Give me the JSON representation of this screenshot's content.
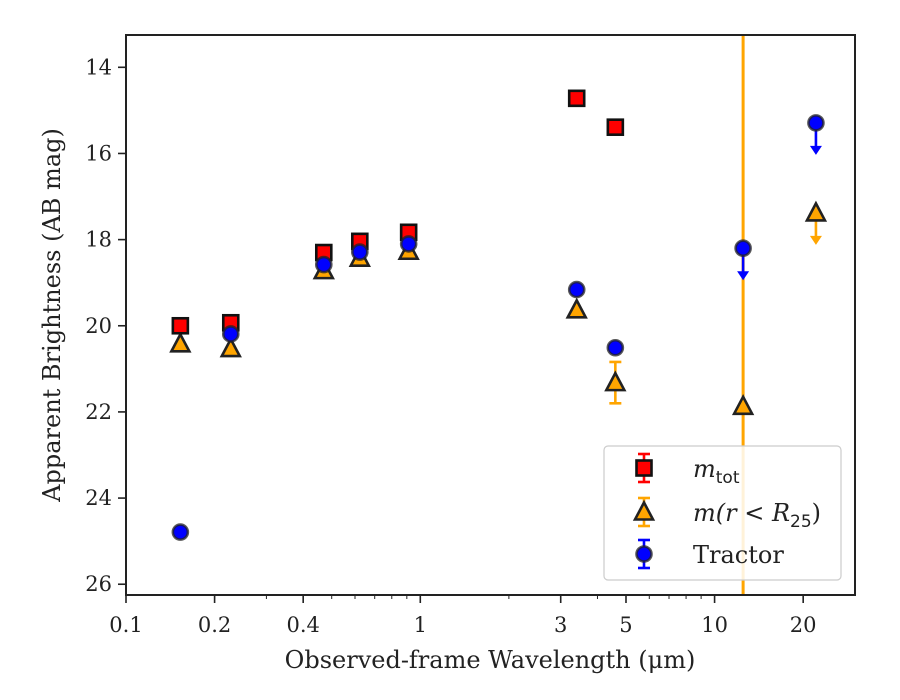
{
  "chart_data": {
    "type": "scatter",
    "title": "",
    "xlabel": "Observed-frame Wavelength (μm)",
    "ylabel": "Apparent Brightness (AB mag)",
    "x_scale": "log",
    "xlim": [
      0.1,
      30
    ],
    "ylim": [
      26.25,
      13.25
    ],
    "y_inverted": true,
    "x_ticks": [
      {
        "value": 0.1,
        "label": "0.1"
      },
      {
        "value": 0.2,
        "label": "0.2"
      },
      {
        "value": 0.4,
        "label": "0.4"
      },
      {
        "value": 1,
        "label": "1"
      },
      {
        "value": 3,
        "label": "3"
      },
      {
        "value": 5,
        "label": "5"
      },
      {
        "value": 10,
        "label": "10"
      },
      {
        "value": 20,
        "label": "20"
      }
    ],
    "y_ticks": [
      {
        "value": 14,
        "label": "14"
      },
      {
        "value": 16,
        "label": "16"
      },
      {
        "value": 18,
        "label": "18"
      },
      {
        "value": 20,
        "label": "20"
      },
      {
        "value": 22,
        "label": "22"
      },
      {
        "value": 24,
        "label": "24"
      },
      {
        "value": 26,
        "label": "26"
      }
    ],
    "grid": false,
    "legend_position": "lower-right",
    "vertical_line": {
      "x": 12.5,
      "color": "#ffa500"
    },
    "series": [
      {
        "name": "m_tot",
        "legend_main": "m",
        "legend_sub": "tot",
        "marker": "square",
        "color": "#ff0000",
        "error_color": "#ff0000",
        "points": [
          {
            "x": 0.153,
            "y": 20.0
          },
          {
            "x": 0.227,
            "y": 19.93
          },
          {
            "x": 0.47,
            "y": 18.3
          },
          {
            "x": 0.623,
            "y": 18.04
          },
          {
            "x": 0.913,
            "y": 17.83
          },
          {
            "x": 3.4,
            "y": 14.72
          },
          {
            "x": 4.6,
            "y": 15.39
          }
        ]
      },
      {
        "name": "m(r < R25)",
        "legend_main": "m(r < R",
        "legend_sub": "25",
        "legend_tail": ")",
        "marker": "triangle",
        "color": "#ffa500",
        "error_color": "#ffa500",
        "points": [
          {
            "x": 0.153,
            "y": 20.42
          },
          {
            "x": 0.227,
            "y": 20.53
          },
          {
            "x": 0.47,
            "y": 18.72
          },
          {
            "x": 0.623,
            "y": 18.43
          },
          {
            "x": 0.913,
            "y": 18.27
          },
          {
            "x": 3.4,
            "y": 19.63
          },
          {
            "x": 4.6,
            "y": 21.32,
            "err": 0.48
          },
          {
            "x": 12.5,
            "y": 21.87
          },
          {
            "x": 22.1,
            "y": 17.38,
            "upper_limit": true
          }
        ]
      },
      {
        "name": "Tractor",
        "marker": "circle",
        "color": "#0000ff",
        "error_color": "#0000ff",
        "points": [
          {
            "x": 0.153,
            "y": 24.79
          },
          {
            "x": 0.227,
            "y": 20.19
          },
          {
            "x": 0.47,
            "y": 18.58
          },
          {
            "x": 0.623,
            "y": 18.29
          },
          {
            "x": 0.913,
            "y": 18.1
          },
          {
            "x": 3.4,
            "y": 19.16
          },
          {
            "x": 4.6,
            "y": 20.51
          },
          {
            "x": 12.5,
            "y": 18.2,
            "upper_limit": true
          },
          {
            "x": 22.1,
            "y": 15.29,
            "upper_limit": true
          }
        ]
      }
    ]
  }
}
